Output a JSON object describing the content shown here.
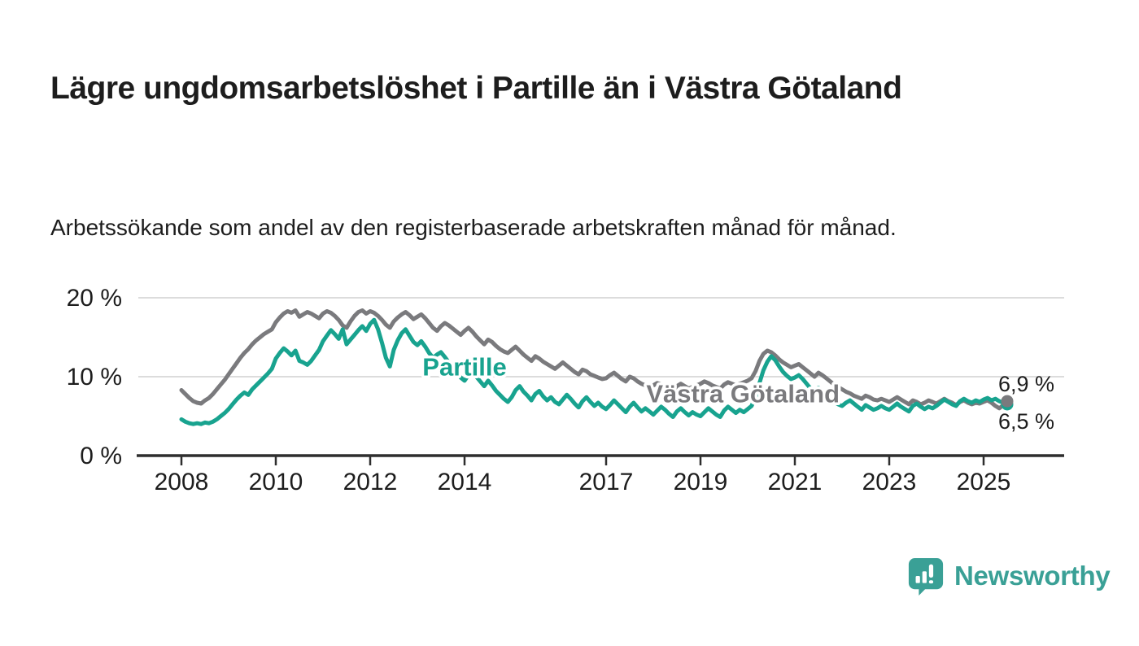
{
  "page": {
    "title": "Lägre ungdomsarbetslöshet i Partille än i Västra Götaland",
    "subtitle": "Arbetssökande som andel av den registerbaserade arbetskraften månad för månad."
  },
  "branding": {
    "name": "Newsworthy",
    "color": "#3aa096",
    "icon": "newsworthy-pin-bar-chart-icon"
  },
  "chart_data": {
    "type": "line",
    "title": "Lägre ungdomsarbetslöshet i Partille än i Västra Götaland",
    "subtitle": "Arbetssökande som andel av den registerbaserade arbetskraften månad för månad.",
    "grid": true,
    "legend_position": "inline-labels-on-lines",
    "x_unit": "month",
    "x_start_year": 2008,
    "x_end_year": 2025.5,
    "ylim": [
      0,
      21
    ],
    "y_axis": {
      "tick_values": [
        0,
        10,
        20
      ],
      "tick_labels": [
        "0 %",
        "10 %",
        "20 %"
      ]
    },
    "x_axis": {
      "tick_years": [
        2008,
        2010,
        2012,
        2014,
        2017,
        2019,
        2021,
        2023,
        2025
      ],
      "tick_labels": [
        "2008",
        "2010",
        "2012",
        "2014",
        "2017",
        "2019",
        "2021",
        "2023",
        "2025"
      ]
    },
    "colors": {
      "partille": "#18a38f",
      "vastra_gotaland": "#7a7a7d",
      "gridline": "#dcdcdc",
      "axis": "#2e2e2e",
      "text": "#1d1d1d"
    },
    "series": [
      {
        "name": "Västra Götaland",
        "color": "#7a7a7d",
        "end_label": "6,9 %",
        "final_value": 6.9,
        "inline_label": {
          "text": "Västra Götaland",
          "x_year": 2019.9,
          "y_value": 7.9
        },
        "values": [
          8.3,
          7.8,
          7.3,
          6.9,
          6.7,
          6.6,
          7.0,
          7.3,
          7.8,
          8.4,
          9.0,
          9.6,
          10.3,
          11.0,
          11.7,
          12.4,
          13.0,
          13.5,
          14.1,
          14.6,
          15.0,
          15.4,
          15.7,
          16.0,
          16.9,
          17.5,
          18.0,
          18.3,
          18.1,
          18.4,
          17.6,
          17.9,
          18.2,
          18.0,
          17.7,
          17.4,
          18.0,
          18.3,
          18.1,
          17.7,
          17.2,
          16.5,
          16.2,
          17.0,
          17.7,
          18.2,
          18.4,
          18.0,
          18.3,
          18.1,
          17.7,
          17.2,
          16.6,
          16.2,
          17.0,
          17.5,
          17.9,
          18.2,
          17.8,
          17.3,
          17.6,
          17.9,
          17.4,
          16.8,
          16.2,
          15.8,
          16.4,
          16.8,
          16.5,
          16.1,
          15.7,
          15.3,
          15.8,
          16.2,
          15.7,
          15.1,
          14.6,
          14.1,
          14.7,
          14.4,
          13.9,
          13.5,
          13.2,
          13.0,
          13.4,
          13.8,
          13.3,
          12.8,
          12.4,
          12.0,
          12.6,
          12.3,
          11.9,
          11.6,
          11.3,
          11.0,
          11.4,
          11.8,
          11.4,
          11.0,
          10.6,
          10.3,
          10.9,
          10.7,
          10.3,
          10.1,
          9.9,
          9.7,
          9.8,
          10.2,
          10.5,
          10.1,
          9.7,
          9.4,
          10.0,
          9.8,
          9.4,
          9.1,
          8.9,
          8.7,
          8.9,
          9.2,
          9.0,
          8.7,
          8.4,
          8.2,
          8.8,
          9.1,
          8.8,
          8.5,
          8.7,
          8.9,
          9.1,
          9.4,
          9.2,
          8.9,
          8.7,
          8.5,
          9.0,
          9.3,
          9.1,
          8.9,
          9.1,
          9.3,
          9.5,
          9.8,
          10.7,
          12.0,
          12.9,
          13.3,
          13.1,
          12.7,
          12.2,
          11.8,
          11.5,
          11.2,
          11.4,
          11.6,
          11.2,
          10.8,
          10.4,
          10.0,
          10.5,
          10.2,
          9.8,
          9.4,
          9.0,
          8.7,
          8.4,
          8.1,
          7.9,
          7.6,
          7.4,
          7.2,
          7.6,
          7.4,
          7.1,
          7.0,
          7.2,
          7.0,
          6.8,
          7.1,
          7.4,
          7.1,
          6.8,
          6.5,
          7.0,
          6.8,
          6.5,
          6.7,
          7.0,
          6.8,
          6.6,
          6.9,
          7.2,
          6.9,
          6.7,
          6.4,
          6.8,
          7.0,
          6.7,
          6.5,
          6.7,
          6.6,
          6.8,
          7.0,
          6.7,
          6.3,
          6.0,
          6.4,
          6.9
        ]
      },
      {
        "name": "Partille",
        "color": "#18a38f",
        "end_label": "6,5 %",
        "final_value": 6.5,
        "inline_label": {
          "text": "Partille",
          "x_year": 2014.0,
          "y_value": 11.3
        },
        "values": [
          4.6,
          4.3,
          4.1,
          4.0,
          4.1,
          4.0,
          4.2,
          4.1,
          4.3,
          4.6,
          5.0,
          5.4,
          5.9,
          6.5,
          7.1,
          7.6,
          8.0,
          7.7,
          8.4,
          8.9,
          9.4,
          9.9,
          10.4,
          11.0,
          12.3,
          13.0,
          13.6,
          13.2,
          12.7,
          13.3,
          12.0,
          11.8,
          11.5,
          12.0,
          12.7,
          13.4,
          14.5,
          15.2,
          15.9,
          15.4,
          14.8,
          16.0,
          14.1,
          14.7,
          15.3,
          15.9,
          16.4,
          15.8,
          16.7,
          17.2,
          16.0,
          14.3,
          12.4,
          11.3,
          13.4,
          14.6,
          15.5,
          16.0,
          15.2,
          14.4,
          14.0,
          14.5,
          13.8,
          13.0,
          12.4,
          12.8,
          13.1,
          12.5,
          11.8,
          11.2,
          10.5,
          9.9,
          9.5,
          10.2,
          10.7,
          10.0,
          9.4,
          8.8,
          9.5,
          8.9,
          8.2,
          7.7,
          7.2,
          6.8,
          7.4,
          8.3,
          8.8,
          8.1,
          7.6,
          7.0,
          7.8,
          8.2,
          7.5,
          7.0,
          7.4,
          6.8,
          6.5,
          7.1,
          7.7,
          7.2,
          6.6,
          6.1,
          6.9,
          7.4,
          6.8,
          6.3,
          6.7,
          6.2,
          5.9,
          6.4,
          7.0,
          6.5,
          6.0,
          5.5,
          6.2,
          6.7,
          6.1,
          5.6,
          6.0,
          5.6,
          5.2,
          5.7,
          6.2,
          5.8,
          5.3,
          4.9,
          5.6,
          6.0,
          5.5,
          5.1,
          5.5,
          5.2,
          5.0,
          5.5,
          6.0,
          5.6,
          5.2,
          4.9,
          5.7,
          6.2,
          5.8,
          5.4,
          5.8,
          5.5,
          5.9,
          6.3,
          7.4,
          9.2,
          10.8,
          11.9,
          12.6,
          12.1,
          11.3,
          10.6,
          10.1,
          9.7,
          9.9,
          10.2,
          9.7,
          9.1,
          8.5,
          7.9,
          8.6,
          8.2,
          7.6,
          7.1,
          6.8,
          6.5,
          6.3,
          6.7,
          7.0,
          6.6,
          6.2,
          5.8,
          6.4,
          6.1,
          5.8,
          6.0,
          6.3,
          6.0,
          5.8,
          6.2,
          6.6,
          6.2,
          5.9,
          5.6,
          6.3,
          6.6,
          6.2,
          5.9,
          6.2,
          6.0,
          6.3,
          6.7,
          7.1,
          6.8,
          6.5,
          6.3,
          6.9,
          7.2,
          6.9,
          6.7,
          7.0,
          6.8,
          7.1,
          7.3,
          7.0,
          7.2,
          6.9,
          6.7,
          6.5
        ]
      }
    ]
  }
}
